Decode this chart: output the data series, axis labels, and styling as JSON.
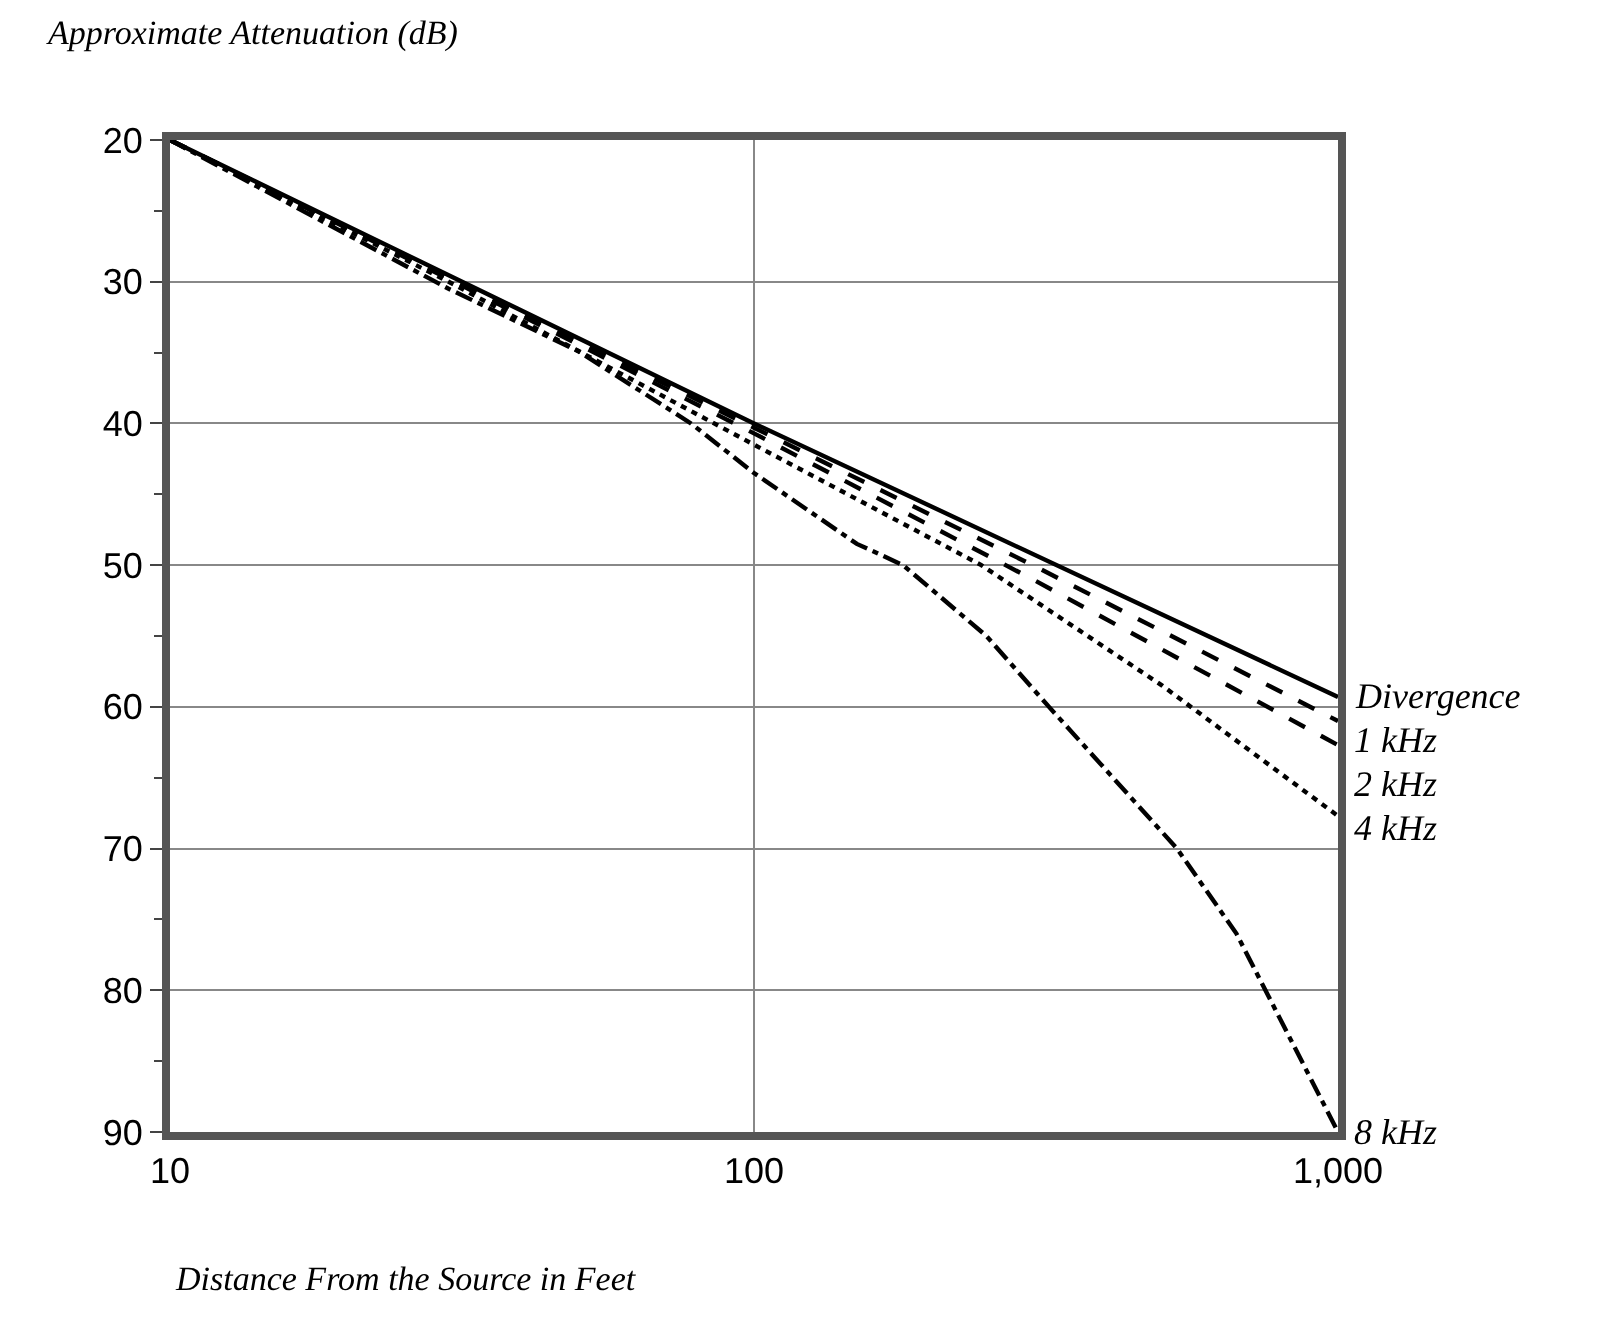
{
  "chart_data": {
    "type": "line",
    "ylabel": "Approximate Attenuation (dB)",
    "xlabel": "Distance From the Source in Feet",
    "log": "x",
    "xlim": [
      10,
      1000
    ],
    "xticks": [
      10,
      100,
      {
        "value": 1000,
        "label": "1,000"
      }
    ],
    "ylim": [
      90,
      20
    ],
    "yticks": [
      20,
      30,
      40,
      50,
      60,
      70,
      80,
      90
    ],
    "grid": true,
    "legend": false,
    "marker": "none",
    "series": [
      {
        "name": "Divergence",
        "color": "#000000",
        "line_style": "solid",
        "x": [
          10,
          100,
          1000
        ],
        "values": [
          20,
          40,
          59.3
        ]
      },
      {
        "name": "1 kHz",
        "color": "#000000",
        "line_style": "dashed",
        "x": [
          10,
          30,
          100,
          300,
          1000
        ],
        "values": [
          20,
          29.7,
          40.3,
          50,
          61
        ]
      },
      {
        "name": "2 kHz",
        "color": "#000000",
        "line_style": "dashed",
        "x": [
          10,
          30,
          100,
          300,
          1000
        ],
        "values": [
          20,
          29.8,
          40.7,
          51,
          62.7
        ]
      },
      {
        "name": "4 kHz",
        "color": "#000000",
        "line_style": "dotted",
        "x": [
          10,
          30,
          100,
          245,
          500,
          1000
        ],
        "values": [
          20,
          30,
          41.5,
          50,
          58.5,
          67.7
        ]
      },
      {
        "name": "8 kHz",
        "color": "#000000",
        "line_style": "dashdot",
        "x": [
          10,
          30,
          50,
          78,
          100,
          150,
          180,
          250,
          320,
          530,
          670,
          1000
        ],
        "values": [
          20,
          30.5,
          34.9,
          40,
          43.5,
          48.5,
          50,
          55,
          60,
          70,
          76,
          90
        ]
      }
    ]
  }
}
